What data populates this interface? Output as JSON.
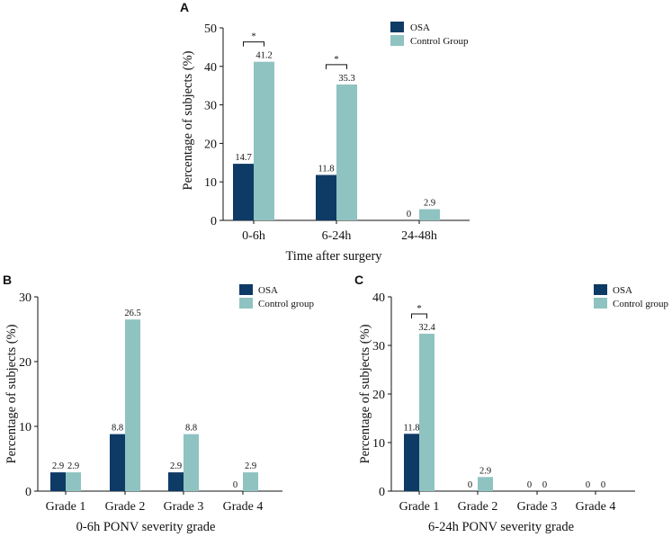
{
  "colors": {
    "osa": "#0e3a66",
    "control": "#8ec3c1",
    "axis": "#111111"
  },
  "chart_data": [
    {
      "panel": "A",
      "type": "bar",
      "xlabel": "Time after surgery",
      "ylabel": "Percentage of subjects (%)",
      "ylim": [
        0,
        50
      ],
      "yticks": [
        0,
        10,
        20,
        30,
        40,
        50
      ],
      "categories": [
        "0-6h",
        "6-24h",
        "24-48h"
      ],
      "series": [
        {
          "name": "OSA",
          "values": [
            14.7,
            11.8,
            0
          ],
          "labels": [
            "14.7",
            "11.8",
            "0"
          ]
        },
        {
          "name": "Control Group",
          "values": [
            41.2,
            35.3,
            2.9
          ],
          "labels": [
            "41.2",
            "35.3",
            "2.9"
          ]
        }
      ],
      "significance": [
        {
          "category": "0-6h",
          "mark": "*"
        },
        {
          "category": "6-24h",
          "mark": "*"
        }
      ],
      "legend_position": "top-right"
    },
    {
      "panel": "B",
      "type": "bar",
      "xlabel": "0-6h PONV severity grade",
      "ylabel": "Percentage of subjects (%)",
      "ylim": [
        0,
        30
      ],
      "yticks": [
        0,
        10,
        20,
        30
      ],
      "categories": [
        "Grade 1",
        "Grade 2",
        "Grade 3",
        "Grade 4"
      ],
      "series": [
        {
          "name": "OSA",
          "values": [
            2.9,
            8.8,
            2.9,
            0
          ],
          "labels": [
            "2.9",
            "8.8",
            "2.9",
            "0"
          ]
        },
        {
          "name": "Control group",
          "values": [
            2.9,
            26.5,
            8.8,
            2.9
          ],
          "labels": [
            "2.9",
            "26.5",
            "8.8",
            "2.9"
          ]
        }
      ],
      "significance": [],
      "legend_position": "top-right"
    },
    {
      "panel": "C",
      "type": "bar",
      "xlabel": "6-24h PONV severity grade",
      "ylabel": "Percentage of subjects (%)",
      "ylim": [
        0,
        40
      ],
      "yticks": [
        0,
        10,
        20,
        30,
        40
      ],
      "categories": [
        "Grade 1",
        "Grade 2",
        "Grade 3",
        "Grade 4"
      ],
      "series": [
        {
          "name": "OSA",
          "values": [
            11.8,
            0,
            0,
            0
          ],
          "labels": [
            "11.8",
            "0",
            "0",
            "0"
          ]
        },
        {
          "name": "Control group",
          "values": [
            32.4,
            2.9,
            0,
            0
          ],
          "labels": [
            "32.4",
            "2.9",
            "0",
            "0"
          ]
        }
      ],
      "significance": [
        {
          "category": "Grade 1",
          "mark": "*"
        }
      ],
      "legend_position": "top-right"
    }
  ]
}
